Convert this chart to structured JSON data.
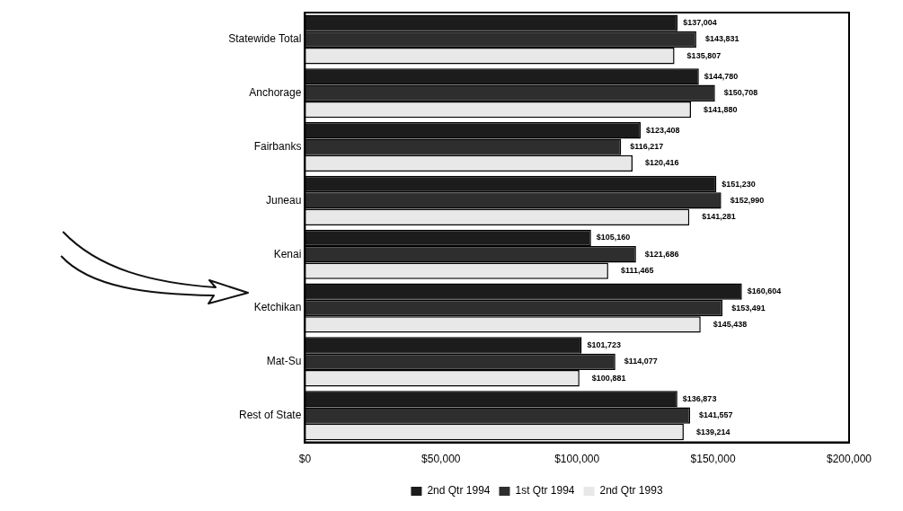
{
  "chart_data": {
    "type": "bar",
    "orientation": "horizontal",
    "categories": [
      "Statewide Total",
      "Anchorage",
      "Fairbanks",
      "Juneau",
      "Kenai",
      "Ketchikan",
      "Mat-Su",
      "Rest of State"
    ],
    "series": [
      {
        "name": "2nd Qtr 1994",
        "color": "#1c1c1c",
        "values": [
          137004,
          144780,
          123408,
          151230,
          105160,
          160604,
          101723,
          136873
        ],
        "value_labels": [
          "$137,004",
          "$144,780",
          "$123,408",
          "$151,230",
          "$105,160",
          "$160,604",
          "$101,723",
          "$136,873"
        ]
      },
      {
        "name": "1st Qtr 1994",
        "color": "#2e2e2e",
        "values": [
          143831,
          150708,
          116217,
          152990,
          121686,
          153491,
          114077,
          141557
        ],
        "value_labels": [
          "$143,831",
          "$150,708",
          "$116,217",
          "$152,990",
          "$121,686",
          "$153,491",
          "$114,077",
          "$141,557"
        ]
      },
      {
        "name": "2nd Qtr 1993",
        "color": "#e8e8e8",
        "values": [
          135807,
          141880,
          120416,
          141281,
          111465,
          145438,
          100881,
          139214
        ],
        "value_labels": [
          "$135,807",
          "$141,880",
          "$120,416",
          "$141,281",
          "$111,465",
          "$145,438",
          "$100,881",
          "$139,214"
        ]
      }
    ],
    "xlim": [
      0,
      200000
    ],
    "xticks": [
      {
        "value": 0,
        "label": "$0"
      },
      {
        "value": 50000,
        "label": "$50,000"
      },
      {
        "value": 100000,
        "label": "$100,000"
      },
      {
        "value": 150000,
        "label": "$150,000"
      },
      {
        "value": 200000,
        "label": "$200,000"
      }
    ],
    "grid": false,
    "legend": "bottom"
  }
}
